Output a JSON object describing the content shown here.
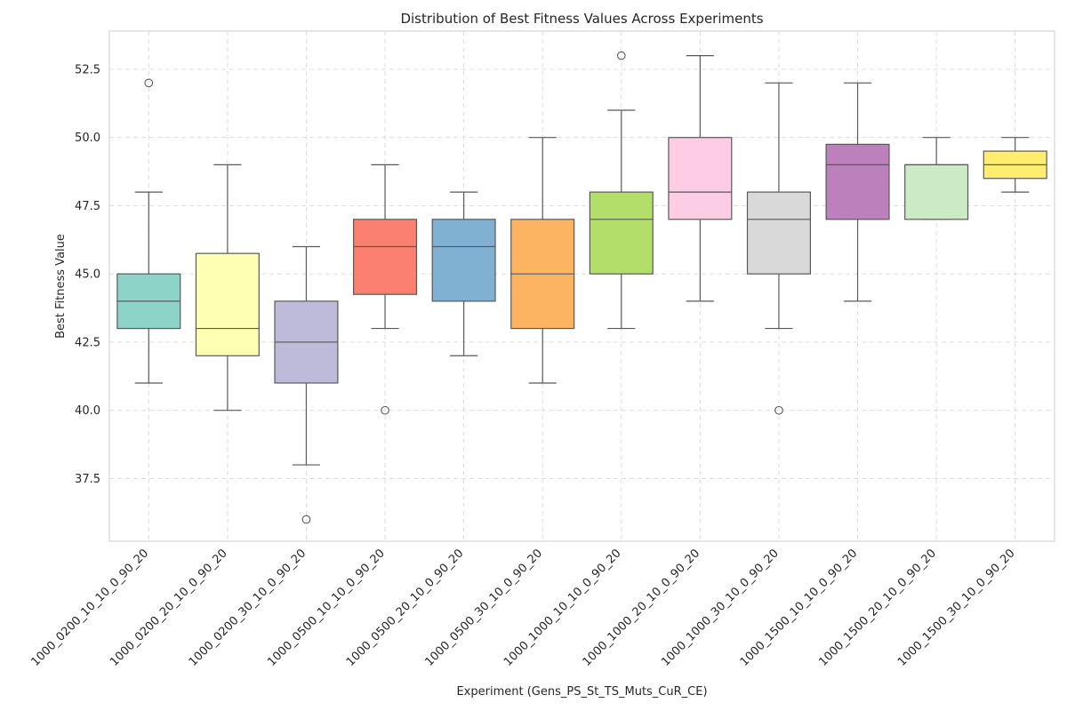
{
  "chart_data": {
    "type": "box",
    "title": "Distribution of Best Fitness Values Across Experiments",
    "xlabel": "Experiment (Gens_PS_St_TS_Muts_CuR_CE)",
    "ylabel": "Best Fitness Value",
    "ylim": [
      35.2,
      53.9
    ],
    "yticks": [
      37.5,
      40.0,
      42.5,
      45.0,
      47.5,
      50.0,
      52.5
    ],
    "ytick_labels": [
      "37.5",
      "40.0",
      "42.5",
      "45.0",
      "47.5",
      "50.0",
      "52.5"
    ],
    "grid": true,
    "legend": "none",
    "categories": [
      "1000_0200_10_10_0_90_20",
      "1000_0200_20_10_0_90_20",
      "1000_0200_30_10_0_90_20",
      "1000_0500_10_10_0_90_20",
      "1000_0500_20_10_0_90_20",
      "1000_0500_30_10_0_90_20",
      "1000_1000_10_10_0_90_20",
      "1000_1000_20_10_0_90_20",
      "1000_1000_30_10_0_90_20",
      "1000_1500_10_10_0_90_20",
      "1000_1500_20_10_0_90_20",
      "1000_1500_30_10_0_90_20"
    ],
    "boxes": [
      {
        "whisker_low": 41,
        "q1": 43,
        "median": 44,
        "q3": 45,
        "whisker_high": 48,
        "outliers": [
          52
        ],
        "color": "#8dd3c7"
      },
      {
        "whisker_low": 40,
        "q1": 42,
        "median": 43,
        "q3": 45.75,
        "whisker_high": 49,
        "outliers": [],
        "color": "#ffffb3"
      },
      {
        "whisker_low": 38,
        "q1": 41,
        "median": 42.5,
        "q3": 44,
        "whisker_high": 46,
        "outliers": [
          36
        ],
        "color": "#bebada"
      },
      {
        "whisker_low": 43,
        "q1": 44.25,
        "median": 46,
        "q3": 47,
        "whisker_high": 49,
        "outliers": [
          40
        ],
        "color": "#fb8072"
      },
      {
        "whisker_low": 42,
        "q1": 44,
        "median": 46,
        "q3": 47,
        "whisker_high": 48,
        "outliers": [],
        "color": "#80b1d3"
      },
      {
        "whisker_low": 41,
        "q1": 43,
        "median": 45,
        "q3": 47,
        "whisker_high": 50,
        "outliers": [],
        "color": "#fdb462"
      },
      {
        "whisker_low": 43,
        "q1": 45,
        "median": 47,
        "q3": 48,
        "whisker_high": 51,
        "outliers": [
          53
        ],
        "color": "#b3de69"
      },
      {
        "whisker_low": 44,
        "q1": 47,
        "median": 48,
        "q3": 50,
        "whisker_high": 53,
        "outliers": [],
        "color": "#fccde5"
      },
      {
        "whisker_low": 43,
        "q1": 45,
        "median": 47,
        "q3": 48,
        "whisker_high": 52,
        "outliers": [
          40
        ],
        "color": "#d9d9d9"
      },
      {
        "whisker_low": 44,
        "q1": 47,
        "median": 49,
        "q3": 49.75,
        "whisker_high": 52,
        "outliers": [],
        "color": "#bc80bd"
      },
      {
        "whisker_low": 47,
        "q1": 47,
        "median": 49,
        "q3": 49,
        "whisker_high": 50,
        "outliers": [],
        "color": "#ccebc5"
      },
      {
        "whisker_low": 48,
        "q1": 48.5,
        "median": 49,
        "q3": 49.5,
        "whisker_high": 50,
        "outliers": [],
        "color": "#ffed6f"
      }
    ]
  }
}
